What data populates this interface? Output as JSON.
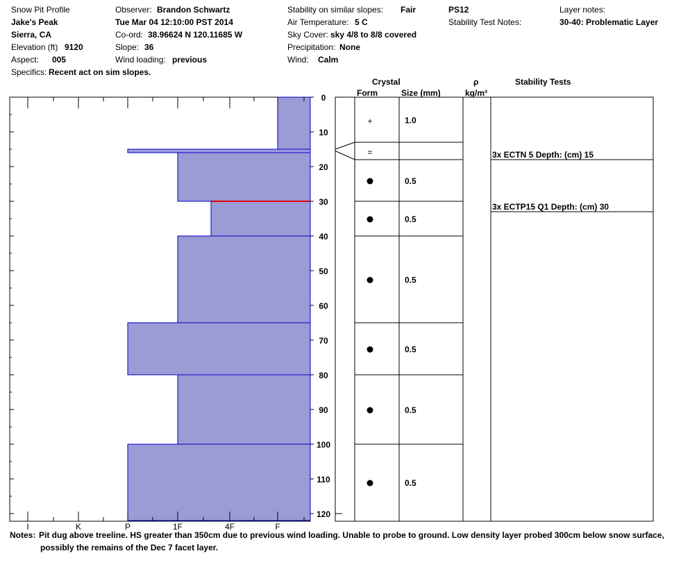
{
  "header": {
    "profile_title": "Snow Pit Profile",
    "location": "Jake's Peak",
    "region": "Sierra, CA",
    "elevation_label": "Elevation (ft)",
    "elevation_value": "9120",
    "aspect_label": "Aspect:",
    "aspect_value": "005",
    "specifics_label": "Specifics:",
    "specifics_value": "Recent act on sim slopes.",
    "observer_label": "Observer:",
    "observer_value": "Brandon Schwartz",
    "datetime": "Tue Mar 04 12:10:00 PST 2014",
    "coord_label": "Co-ord:",
    "coord_value": "38.96624 N 120.11685 W",
    "slope_label": "Slope:",
    "slope_value": "36",
    "wind_loading_label": "Wind loading:",
    "wind_loading_value": "previous",
    "stability_label": "Stability on similar slopes:",
    "stability_value": "Fair",
    "air_temp_label": "Air Temperature:",
    "air_temp_value": "5 C",
    "sky_label": "Sky Cover:",
    "sky_value": "sky 4/8 to 8/8 covered",
    "precip_label": "Precipitation:",
    "precip_value": "None",
    "wind_label": "Wind:",
    "wind_value": "Calm",
    "test_id": "PS12",
    "stability_notes_label": "Stability Test Notes:",
    "layer_notes_label": "Layer notes:",
    "layer_notes_value": "30-40: Problematic Layer"
  },
  "columns": {
    "crystal": "Crystal",
    "form": "Form",
    "size": "Size (mm)",
    "rho": "ρ",
    "density_unit": "kg/m³",
    "stability_tests": "Stability Tests"
  },
  "notes": {
    "label": "Notes:",
    "line1": "Pit dug above treeline. HS greater than 350cm due to previous wind loading. Unable to probe to ground. Low density layer probed 300cm below snow surface,",
    "line2": "possibly the remains of the Dec 7 facet layer."
  },
  "chart_data": {
    "type": "snow_pit_profile",
    "depth_unit": "cm",
    "depth_range": [
      0,
      120
    ],
    "depth_ticks": [
      0,
      10,
      20,
      30,
      40,
      50,
      60,
      70,
      80,
      90,
      100,
      110,
      120
    ],
    "hardness_scale": [
      "I",
      "K",
      "P",
      "1F",
      "4F",
      "F"
    ],
    "hardness_profile": [
      {
        "top": 0,
        "bottom": 15,
        "hardness": "F"
      },
      {
        "top": 15,
        "bottom": 16,
        "hardness": "P"
      },
      {
        "top": 16,
        "bottom": 30,
        "hardness": "1F"
      },
      {
        "top": 30,
        "bottom": 40,
        "hardness": "4F-"
      },
      {
        "top": 40,
        "bottom": 65,
        "hardness": "1F"
      },
      {
        "top": 65,
        "bottom": 80,
        "hardness": "P"
      },
      {
        "top": 80,
        "bottom": 100,
        "hardness": "1F"
      },
      {
        "top": 100,
        "bottom": 122,
        "hardness": "P"
      }
    ],
    "highlight_layer_depth": 30,
    "crystal_layers": [
      {
        "top": 0,
        "bottom": 13,
        "form": "+",
        "size": "1.0"
      },
      {
        "top": 13,
        "bottom": 18,
        "form": "=",
        "size": ""
      },
      {
        "top": 18,
        "bottom": 30,
        "form": "●",
        "size": "0.5"
      },
      {
        "top": 30,
        "bottom": 40,
        "form": "●",
        "size": "0.5"
      },
      {
        "top": 40,
        "bottom": 65,
        "form": "●",
        "size": "0.5"
      },
      {
        "top": 65,
        "bottom": 80,
        "form": "●",
        "size": "0.5"
      },
      {
        "top": 80,
        "bottom": 100,
        "form": "●",
        "size": "0.5"
      },
      {
        "top": 100,
        "bottom": 122,
        "form": "●",
        "size": "0.5"
      }
    ],
    "stability_tests": [
      {
        "depth": 18,
        "label": "3x ECTN 5   Depth: (cm) 15"
      },
      {
        "depth": 33,
        "label": "3x ECTP15 Q1 Depth: (cm) 30"
      }
    ],
    "colors": {
      "fill": "#9b9bd6",
      "edge": "#0000cc",
      "highlight": "#e00000"
    }
  }
}
